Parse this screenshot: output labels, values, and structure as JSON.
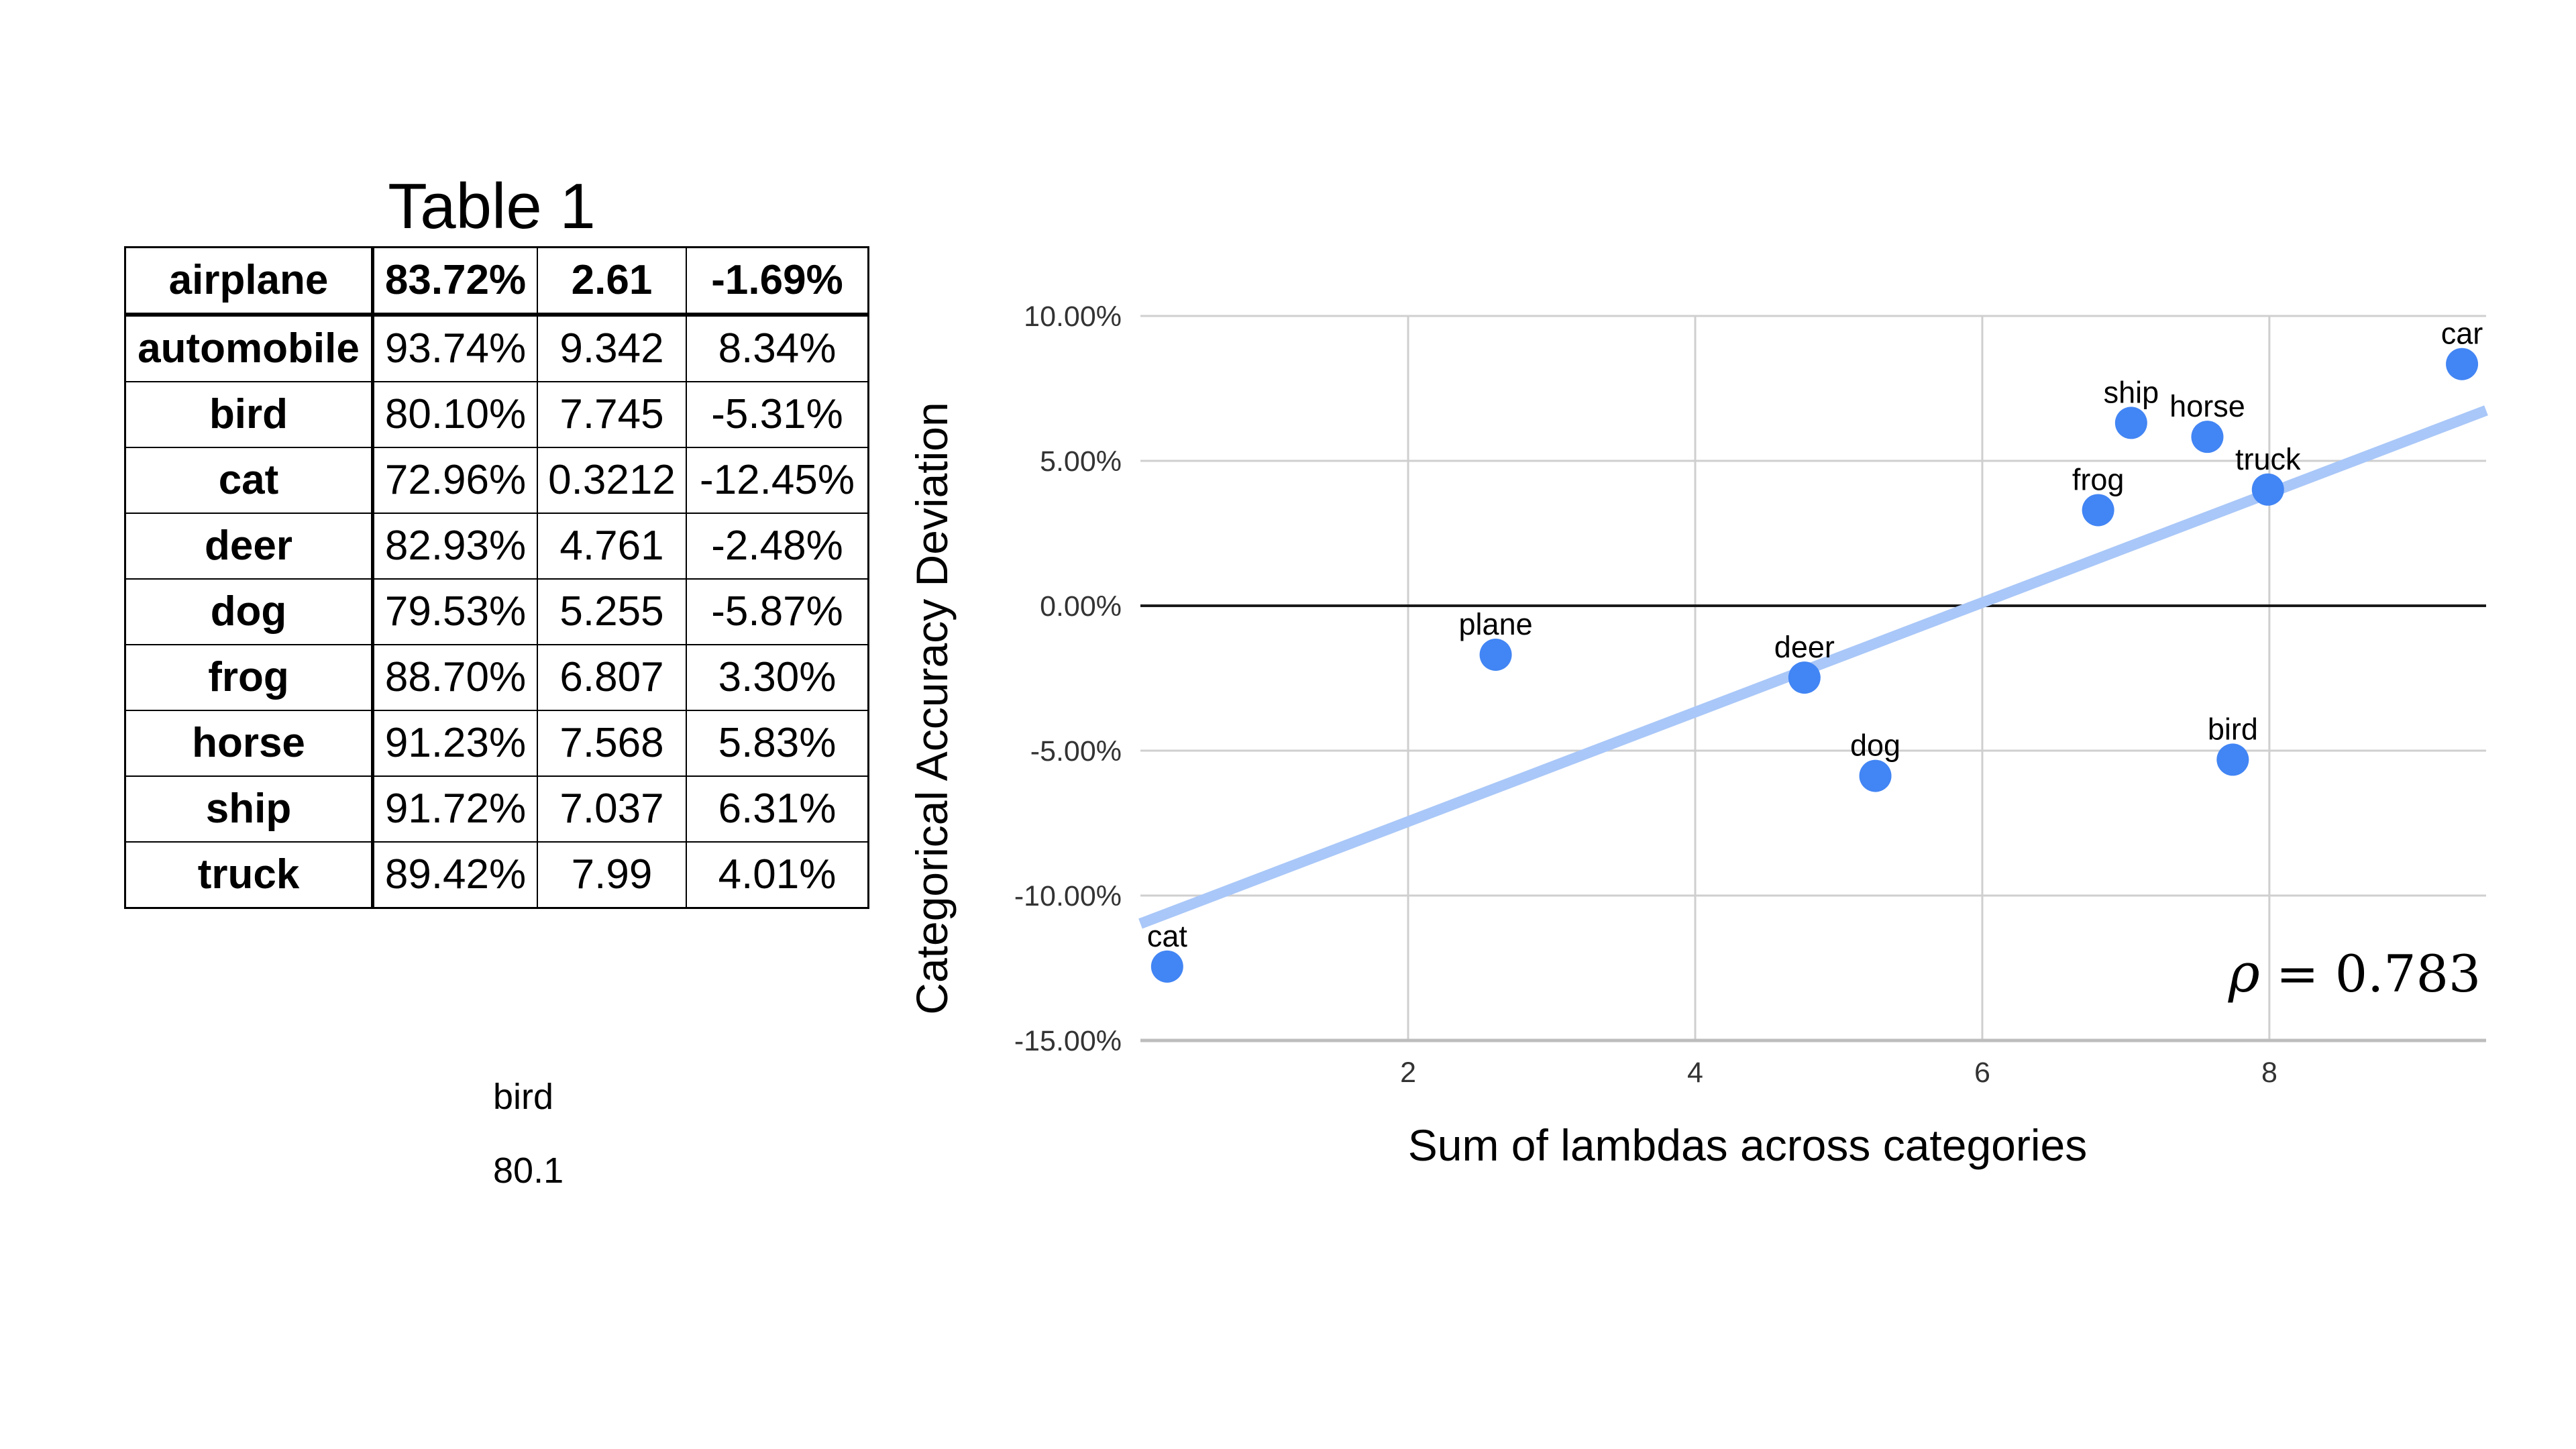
{
  "table": {
    "title": "Table 1",
    "rows": [
      {
        "cells": [
          "airplane",
          "83.72%",
          "2.61",
          "-1.69%"
        ],
        "header": true
      },
      {
        "cells": [
          "automobile",
          "93.74%",
          "9.342",
          "8.34%"
        ],
        "header": false
      },
      {
        "cells": [
          "bird",
          "80.10%",
          "7.745",
          "-5.31%"
        ],
        "header": false
      },
      {
        "cells": [
          "cat",
          "72.96%",
          "0.3212",
          "-12.45%"
        ],
        "header": false
      },
      {
        "cells": [
          "deer",
          "82.93%",
          "4.761",
          "-2.48%"
        ],
        "header": false
      },
      {
        "cells": [
          "dog",
          "79.53%",
          "5.255",
          "-5.87%"
        ],
        "header": false
      },
      {
        "cells": [
          "frog",
          "88.70%",
          "6.807",
          "3.30%"
        ],
        "header": false
      },
      {
        "cells": [
          "horse",
          "91.23%",
          "7.568",
          "5.83%"
        ],
        "header": false
      },
      {
        "cells": [
          "ship",
          "91.72%",
          "7.037",
          "6.31%"
        ],
        "header": false
      },
      {
        "cells": [
          "truck",
          "89.42%",
          "7.99",
          "4.01%"
        ],
        "header": false
      }
    ]
  },
  "notes": {
    "line1": "bird",
    "line2": "80.1"
  },
  "chart_data": {
    "type": "scatter",
    "title": "",
    "xlabel": "Sum of lambdas across categories",
    "ylabel": "Categorical Accuracy Deviation",
    "xlim": [
      0.135,
      9.51
    ],
    "ylim": [
      -15,
      10
    ],
    "grid": true,
    "legend": "none",
    "xticks": [
      {
        "label": "2",
        "value": 2
      },
      {
        "label": "4",
        "value": 4
      },
      {
        "label": "6",
        "value": 6
      },
      {
        "label": "8",
        "value": 8
      }
    ],
    "yticks": [
      {
        "label": "10.00%",
        "value": 10
      },
      {
        "label": "5.00%",
        "value": 5
      },
      {
        "label": "0.00%",
        "value": 0
      },
      {
        "label": "-5.00%",
        "value": -5
      },
      {
        "label": "-10.00%",
        "value": -10
      },
      {
        "label": "-15.00%",
        "value": -15
      }
    ],
    "points": [
      {
        "label": "plane",
        "x": 2.61,
        "y": -1.69
      },
      {
        "label": "car",
        "x": 9.342,
        "y": 8.34
      },
      {
        "label": "bird",
        "x": 7.745,
        "y": -5.31
      },
      {
        "label": "cat",
        "x": 0.3212,
        "y": -12.45
      },
      {
        "label": "deer",
        "x": 4.761,
        "y": -2.48
      },
      {
        "label": "dog",
        "x": 5.255,
        "y": -5.87
      },
      {
        "label": "frog",
        "x": 6.807,
        "y": 3.3
      },
      {
        "label": "horse",
        "x": 7.568,
        "y": 5.83
      },
      {
        "label": "ship",
        "x": 7.037,
        "y": 6.31
      },
      {
        "label": "truck",
        "x": 7.99,
        "y": 4.01
      }
    ],
    "trendline": {
      "x1": 0.135,
      "y1": -10.97,
      "x2": 9.51,
      "y2": 6.74
    },
    "annotation": {
      "symbol": "ρ",
      "rest": " = 0.783"
    },
    "colors": {
      "point": "#4285F4",
      "trend": "#A9C7F8",
      "grid": "#CFCFCF",
      "zero": "#1A1A1A",
      "axis_line": "#BDBDBD",
      "text": "#000000",
      "tick_text": "#333333"
    }
  }
}
